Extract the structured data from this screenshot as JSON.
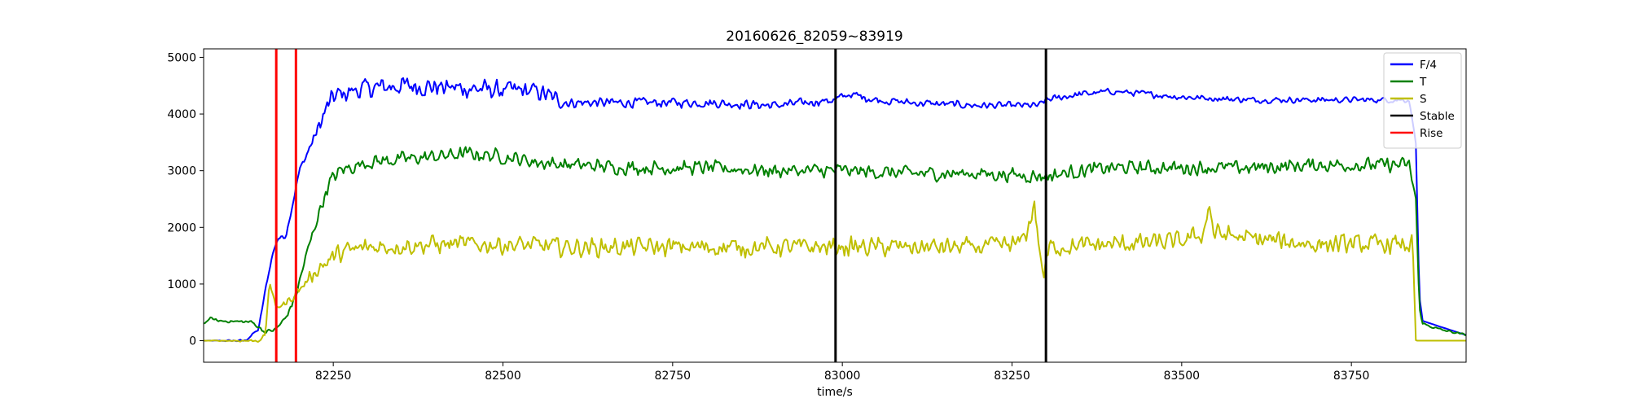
{
  "chart_data": {
    "type": "line",
    "title": "20160626_82059~83919",
    "xlabel": "time/s",
    "ylabel": "",
    "xlim": [
      82059,
      83919
    ],
    "ylim": [
      -380,
      5150
    ],
    "x_ticks": [
      82250,
      82500,
      82750,
      83000,
      83250,
      83500,
      83750
    ],
    "y_ticks": [
      0,
      1000,
      2000,
      3000,
      4000,
      5000
    ],
    "grid": false,
    "legend_position": "top-right",
    "series": [
      {
        "name": "F/4",
        "color": "#0000ff",
        "keypoints": [
          [
            82059,
            0
          ],
          [
            82120,
            0
          ],
          [
            82140,
            200
          ],
          [
            82150,
            900
          ],
          [
            82160,
            1500
          ],
          [
            82168,
            1800
          ],
          [
            82180,
            1850
          ],
          [
            82190,
            2400
          ],
          [
            82200,
            3000
          ],
          [
            82215,
            3400
          ],
          [
            82230,
            3800
          ],
          [
            82240,
            4100
          ],
          [
            82250,
            4300
          ],
          [
            82275,
            4400
          ],
          [
            82300,
            4450
          ],
          [
            82350,
            4500
          ],
          [
            82400,
            4480
          ],
          [
            82450,
            4450
          ],
          [
            82500,
            4420
          ],
          [
            82550,
            4400
          ],
          [
            82580,
            4250
          ],
          [
            82600,
            4200
          ],
          [
            82700,
            4200
          ],
          [
            82800,
            4200
          ],
          [
            82900,
            4150
          ],
          [
            82990,
            4250
          ],
          [
            83010,
            4350
          ],
          [
            83050,
            4250
          ],
          [
            83100,
            4200
          ],
          [
            83200,
            4150
          ],
          [
            83290,
            4150
          ],
          [
            83300,
            4250
          ],
          [
            83350,
            4350
          ],
          [
            83400,
            4400
          ],
          [
            83450,
            4350
          ],
          [
            83500,
            4300
          ],
          [
            83600,
            4250
          ],
          [
            83700,
            4250
          ],
          [
            83800,
            4250
          ],
          [
            83835,
            4250
          ],
          [
            83845,
            3500
          ],
          [
            83850,
            800
          ],
          [
            83855,
            350
          ],
          [
            83880,
            250
          ],
          [
            83919,
            100
          ]
        ],
        "noise": [
          [
            82059,
            0
          ],
          [
            82200,
            60
          ],
          [
            82250,
            220
          ],
          [
            82580,
            190
          ],
          [
            82600,
            110
          ],
          [
            82990,
            90
          ],
          [
            83300,
            70
          ],
          [
            83835,
            60
          ],
          [
            83850,
            0
          ]
        ]
      },
      {
        "name": "T",
        "color": "#008000",
        "keypoints": [
          [
            82059,
            300
          ],
          [
            82070,
            400
          ],
          [
            82080,
            350
          ],
          [
            82130,
            330
          ],
          [
            82150,
            150
          ],
          [
            82165,
            200
          ],
          [
            82180,
            400
          ],
          [
            82195,
            800
          ],
          [
            82210,
            1500
          ],
          [
            82230,
            2300
          ],
          [
            82245,
            2800
          ],
          [
            82260,
            3000
          ],
          [
            82300,
            3150
          ],
          [
            82350,
            3200
          ],
          [
            82400,
            3250
          ],
          [
            82450,
            3300
          ],
          [
            82500,
            3250
          ],
          [
            82550,
            3150
          ],
          [
            82600,
            3100
          ],
          [
            82700,
            3050
          ],
          [
            82800,
            3050
          ],
          [
            82900,
            3000
          ],
          [
            83000,
            3000
          ],
          [
            83100,
            2950
          ],
          [
            83200,
            2950
          ],
          [
            83300,
            2900
          ],
          [
            83350,
            3000
          ],
          [
            83400,
            3050
          ],
          [
            83500,
            3050
          ],
          [
            83600,
            3050
          ],
          [
            83700,
            3100
          ],
          [
            83800,
            3100
          ],
          [
            83835,
            3100
          ],
          [
            83845,
            2500
          ],
          [
            83850,
            600
          ],
          [
            83855,
            300
          ],
          [
            83880,
            200
          ],
          [
            83919,
            100
          ]
        ],
        "noise": [
          [
            82059,
            20
          ],
          [
            82160,
            40
          ],
          [
            82250,
            150
          ],
          [
            83835,
            150
          ],
          [
            83850,
            30
          ],
          [
            83919,
            20
          ]
        ]
      },
      {
        "name": "S",
        "color": "#bfbf00",
        "keypoints": [
          [
            82059,
            0
          ],
          [
            82140,
            0
          ],
          [
            82150,
            100
          ],
          [
            82156,
            1050
          ],
          [
            82165,
            600
          ],
          [
            82180,
            650
          ],
          [
            82200,
            900
          ],
          [
            82230,
            1300
          ],
          [
            82260,
            1550
          ],
          [
            82300,
            1650
          ],
          [
            82400,
            1700
          ],
          [
            82500,
            1700
          ],
          [
            82600,
            1650
          ],
          [
            82700,
            1650
          ],
          [
            82800,
            1650
          ],
          [
            82900,
            1650
          ],
          [
            83000,
            1650
          ],
          [
            83100,
            1650
          ],
          [
            83200,
            1650
          ],
          [
            83260,
            1700
          ],
          [
            83275,
            2000
          ],
          [
            83283,
            2450
          ],
          [
            83290,
            1600
          ],
          [
            83297,
            1150
          ],
          [
            83305,
            1650
          ],
          [
            83400,
            1700
          ],
          [
            83500,
            1750
          ],
          [
            83533,
            1900
          ],
          [
            83540,
            2450
          ],
          [
            83547,
            1900
          ],
          [
            83600,
            1800
          ],
          [
            83700,
            1700
          ],
          [
            83800,
            1700
          ],
          [
            83840,
            1700
          ],
          [
            83845,
            0
          ],
          [
            83919,
            0
          ]
        ],
        "noise": [
          [
            82059,
            0
          ],
          [
            82160,
            40
          ],
          [
            82250,
            200
          ],
          [
            83840,
            200
          ],
          [
            83845,
            0
          ]
        ]
      },
      {
        "name": "Stable",
        "color": "#000000",
        "vlines": [
          82990,
          83300
        ]
      },
      {
        "name": "Rise",
        "color": "#ff0000",
        "vlines": [
          82166,
          82195
        ]
      }
    ]
  }
}
